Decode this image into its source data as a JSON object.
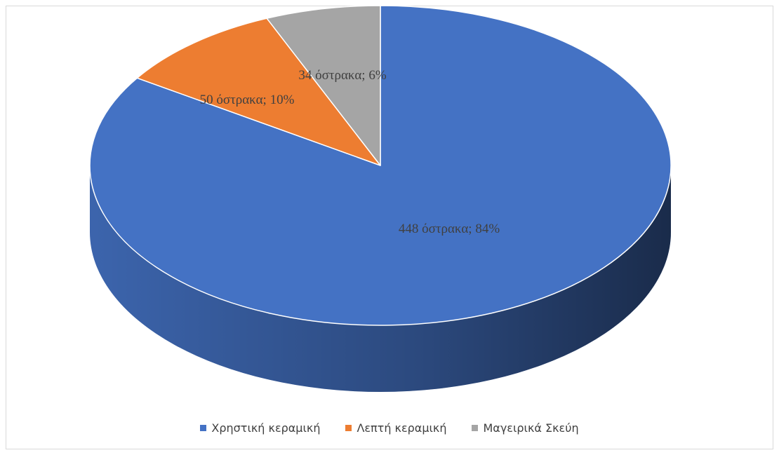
{
  "chart_data": {
    "type": "pie",
    "categories": [
      "Χρηστική κεραμική",
      "Λεπτή κεραμική",
      "Μαγειρικά Σκεύη"
    ],
    "values": [
      448,
      50,
      34
    ],
    "value_labels": [
      "448  όστρακα; 84%",
      "50  όστρακα; 10%",
      "34 όστρακα; 6%"
    ],
    "colors": [
      "#4472c4",
      "#ed7d31",
      "#a5a5a5"
    ],
    "legend": "bottom"
  }
}
